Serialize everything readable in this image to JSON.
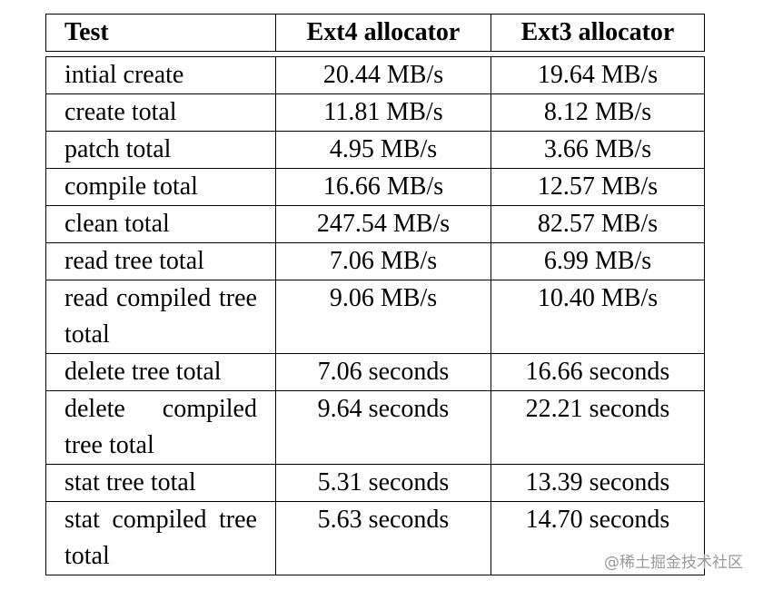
{
  "table": {
    "header": [
      "Test",
      "Ext4 allocator",
      "Ext3 allocator"
    ],
    "rows": [
      [
        "intial create",
        "20.44 MB/s",
        "19.64 MB/s"
      ],
      [
        "create total",
        "11.81 MB/s",
        "8.12 MB/s"
      ],
      [
        "patch total",
        "4.95 MB/s",
        "3.66 MB/s"
      ],
      [
        "compile total",
        "16.66 MB/s",
        "12.57 MB/s"
      ],
      [
        "clean total",
        "247.54 MB/s",
        "82.57 MB/s"
      ],
      [
        "read tree total",
        "7.06 MB/s",
        "6.99 MB/s"
      ],
      [
        "read compiled tree total",
        "9.06 MB/s",
        "10.40 MB/s"
      ],
      [
        "delete tree total",
        "7.06 seconds",
        "16.66 seconds"
      ],
      [
        "delete compiled tree total",
        "9.64 seconds",
        "22.21 seconds"
      ],
      [
        "stat tree total",
        "5.31 seconds",
        "13.39 seconds"
      ],
      [
        "stat compiled tree total",
        "5.63 seconds",
        "14.70 seconds"
      ]
    ]
  },
  "watermark": "@稀土掘金技术社区"
}
